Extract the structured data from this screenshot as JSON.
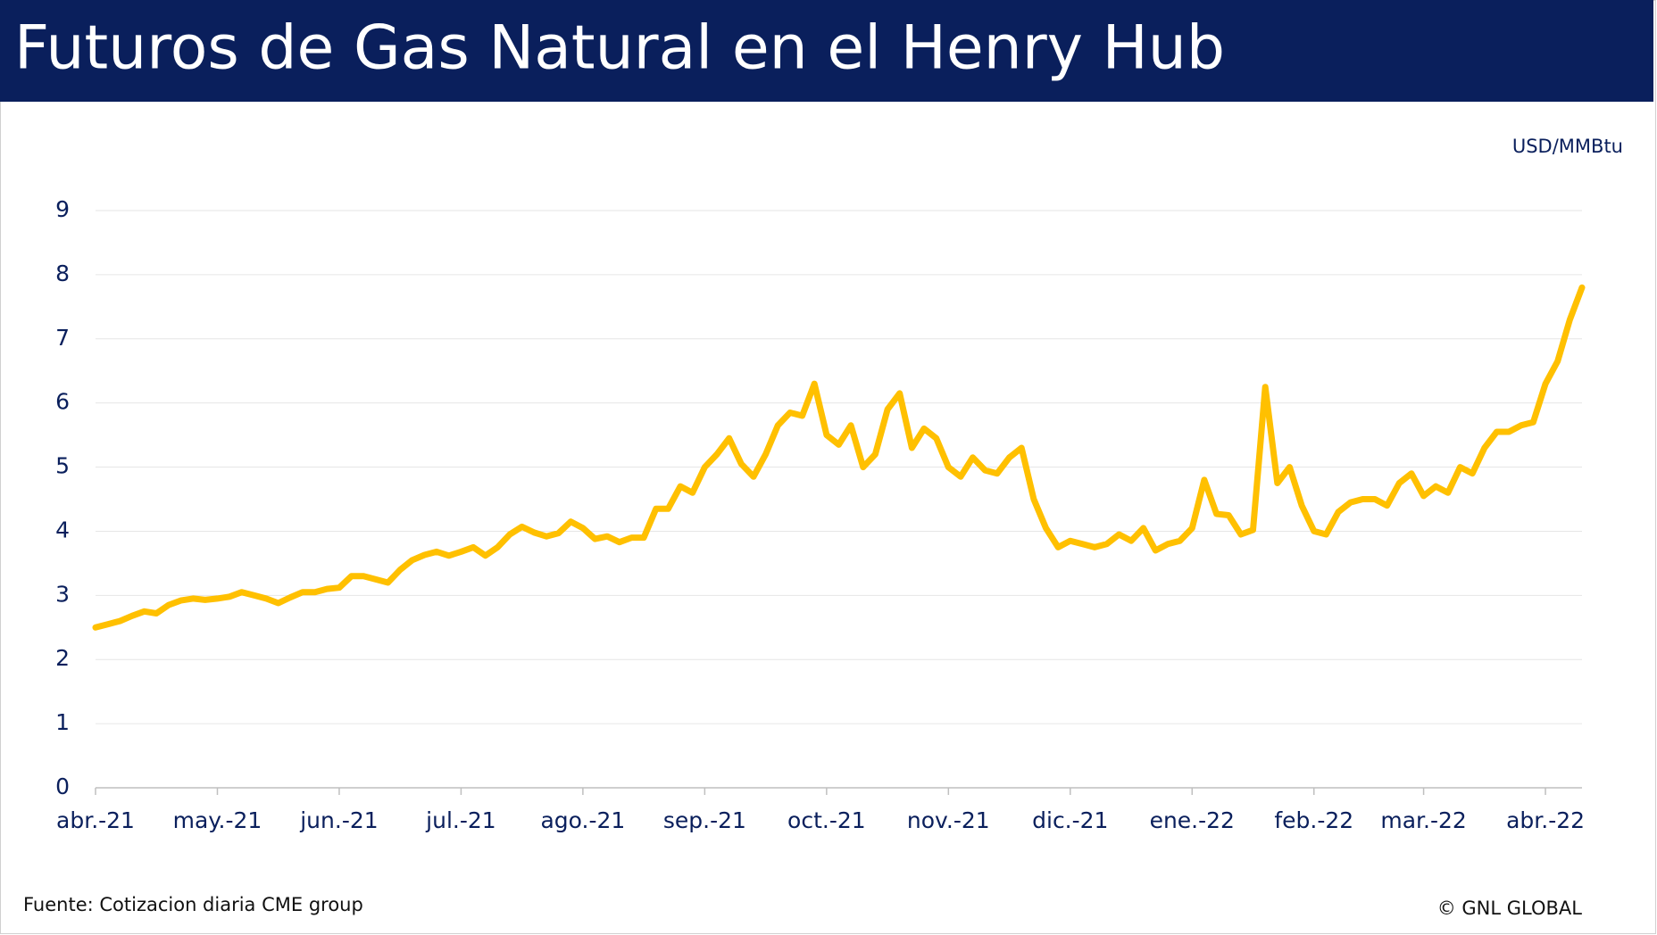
{
  "header": {
    "title": "Futuros de Gas Natural en el Henry Hub"
  },
  "chart_data": {
    "type": "line",
    "unit_label": "USD/MMBtu",
    "categories": [
      "abr.-21",
      null,
      null,
      null,
      null,
      null,
      null,
      null,
      null,
      null,
      "may.-21",
      null,
      null,
      null,
      null,
      null,
      null,
      null,
      null,
      null,
      "jun.-21",
      null,
      null,
      null,
      null,
      null,
      null,
      null,
      null,
      null,
      "jul.-21",
      null,
      null,
      null,
      null,
      null,
      null,
      null,
      null,
      null,
      "ago.-21",
      null,
      null,
      null,
      null,
      null,
      null,
      null,
      null,
      null,
      "sep.-21",
      null,
      null,
      null,
      null,
      null,
      null,
      null,
      null,
      null,
      "oct.-21",
      null,
      null,
      null,
      null,
      null,
      null,
      null,
      null,
      null,
      "nov.-21",
      null,
      null,
      null,
      null,
      null,
      null,
      null,
      null,
      null,
      "dic.-21",
      null,
      null,
      null,
      null,
      null,
      null,
      null,
      null,
      null,
      "ene.-22",
      null,
      null,
      null,
      null,
      null,
      null,
      null,
      null,
      null,
      "feb.-22",
      null,
      null,
      null,
      null,
      null,
      null,
      null,
      null,
      "mar.-22",
      null,
      null,
      null,
      null,
      null,
      null,
      null,
      null,
      null,
      "abr.-22",
      null,
      null,
      null
    ],
    "series": [
      {
        "name": "Henry Hub",
        "color": "#ffc000",
        "values": [
          2.5,
          2.55,
          2.6,
          2.68,
          2.75,
          2.72,
          2.85,
          2.92,
          2.95,
          2.93,
          2.95,
          2.98,
          3.05,
          3.0,
          2.95,
          2.88,
          2.97,
          3.05,
          3.05,
          3.1,
          3.12,
          3.3,
          3.3,
          3.25,
          3.2,
          3.4,
          3.55,
          3.63,
          3.68,
          3.62,
          3.68,
          3.75,
          3.62,
          3.75,
          3.95,
          4.07,
          3.98,
          3.92,
          3.97,
          4.15,
          4.05,
          3.88,
          3.92,
          3.83,
          3.9,
          3.9,
          4.35,
          4.35,
          4.7,
          4.6,
          5.0,
          5.2,
          5.45,
          5.05,
          4.85,
          5.2,
          5.65,
          5.85,
          5.8,
          6.3,
          5.5,
          5.35,
          5.65,
          5.0,
          5.2,
          5.9,
          6.15,
          5.3,
          5.6,
          5.45,
          5.0,
          4.85,
          5.15,
          4.95,
          4.9,
          5.15,
          5.3,
          4.5,
          4.05,
          3.75,
          3.85,
          3.8,
          3.75,
          3.8,
          3.95,
          3.85,
          4.05,
          3.7,
          3.8,
          3.85,
          4.05,
          4.8,
          4.27,
          4.25,
          3.95,
          4.02,
          6.25,
          4.75,
          5.0,
          4.4,
          4.0,
          3.95,
          4.3,
          4.45,
          4.5,
          4.5,
          4.4,
          4.75,
          4.9,
          4.55,
          4.7,
          4.6,
          5.0,
          4.9,
          5.3,
          5.55,
          5.55,
          5.65,
          5.7,
          6.3,
          6.65,
          7.3,
          7.8
        ]
      }
    ],
    "ylim": [
      0,
      9
    ],
    "yticks": [
      0,
      1,
      2,
      3,
      4,
      5,
      6,
      7,
      8,
      9
    ],
    "grid": true
  },
  "footer": {
    "source": "Fuente: Cotizacion diaria CME group",
    "copyright": "© GNL GLOBAL"
  }
}
